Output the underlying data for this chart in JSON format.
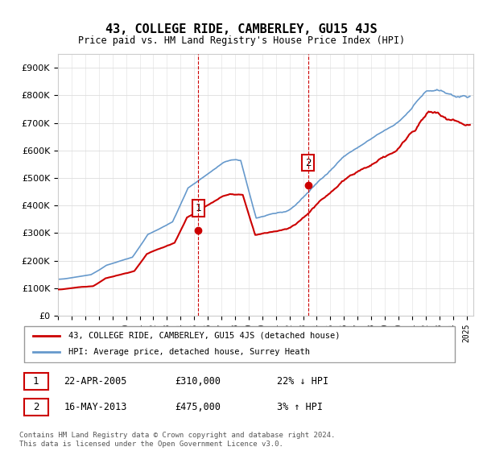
{
  "title": "43, COLLEGE RIDE, CAMBERLEY, GU15 4JS",
  "subtitle": "Price paid vs. HM Land Registry's House Price Index (HPI)",
  "ylabel_ticks": [
    "£0",
    "£100K",
    "£200K",
    "£300K",
    "£400K",
    "£500K",
    "£600K",
    "£700K",
    "£800K",
    "£900K"
  ],
  "ytick_values": [
    0,
    100000,
    200000,
    300000,
    400000,
    500000,
    600000,
    700000,
    800000,
    900000
  ],
  "ylim": [
    0,
    950000
  ],
  "xlim_start": 1995.0,
  "xlim_end": 2025.5,
  "sale1_x": 2005.31,
  "sale1_y": 310000,
  "sale1_label": "1",
  "sale2_x": 2013.37,
  "sale2_y": 475000,
  "sale2_label": "2",
  "vline1_x": 2005.31,
  "vline2_x": 2013.37,
  "property_color": "#cc0000",
  "hpi_color": "#6699cc",
  "legend_property": "43, COLLEGE RIDE, CAMBERLEY, GU15 4JS (detached house)",
  "legend_hpi": "HPI: Average price, detached house, Surrey Heath",
  "table_rows": [
    {
      "num": "1",
      "date": "22-APR-2005",
      "price": "£310,000",
      "change": "22% ↓ HPI"
    },
    {
      "num": "2",
      "date": "16-MAY-2013",
      "price": "£475,000",
      "change": "3% ↑ HPI"
    }
  ],
  "footer": "Contains HM Land Registry data © Crown copyright and database right 2024.\nThis data is licensed under the Open Government Licence v3.0.",
  "background_color": "#ffffff",
  "plot_bg_color": "#ffffff"
}
